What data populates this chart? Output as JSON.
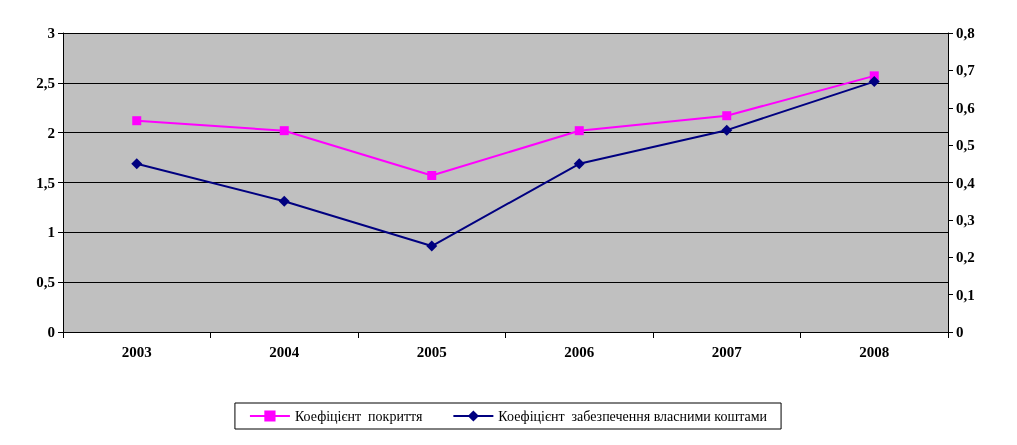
{
  "chart_data": {
    "type": "line",
    "categories": [
      "2003",
      "2004",
      "2005",
      "2006",
      "2007",
      "2008"
    ],
    "series": [
      {
        "name": "Коефіцієнт  покриття",
        "color": "#ff00ff",
        "marker": "square",
        "values": [
          2.12,
          2.02,
          1.57,
          2.02,
          2.17,
          2.57
        ]
      },
      {
        "name": "Коефіцієнт  забезпечення власними коштами",
        "color": "#000080",
        "marker": "diamond",
        "axis": "y2",
        "values": [
          0.45,
          0.35,
          0.23,
          0.45,
          0.54,
          0.67
        ]
      }
    ],
    "ylim": [
      0,
      3
    ],
    "yticks": [
      0,
      {
        "value": 0.5,
        "label": "0,5"
      },
      1,
      {
        "value": 1.5,
        "label": "1,5"
      },
      2,
      {
        "value": 2.5,
        "label": "2,5"
      },
      3
    ],
    "y2lim": [
      0,
      0.8
    ],
    "y2ticks": [
      0,
      {
        "value": 0.1,
        "label": "0,1"
      },
      {
        "value": 0.2,
        "label": "0,2"
      },
      {
        "value": 0.3,
        "label": "0,3"
      },
      {
        "value": 0.4,
        "label": "0,4"
      },
      {
        "value": 0.5,
        "label": "0,5"
      },
      {
        "value": 0.6,
        "label": "0,6"
      },
      {
        "value": 0.7,
        "label": "0,7"
      },
      {
        "value": 0.8,
        "label": "0,8"
      }
    ],
    "grid": "y",
    "legend": "bottom",
    "line_style": "solid"
  }
}
